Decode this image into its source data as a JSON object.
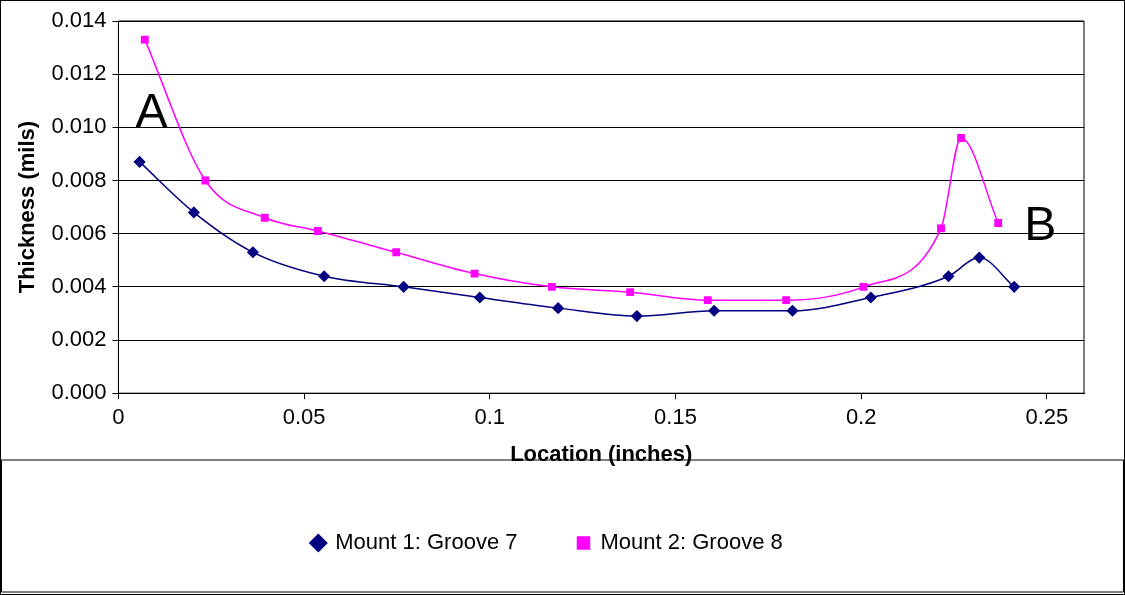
{
  "chart_data": {
    "type": "line",
    "xlabel": "Location (inches)",
    "ylabel": "Thickness (mils)",
    "xlim": [
      0,
      0.26
    ],
    "xticks": [
      0,
      0.05,
      0.1,
      0.15,
      0.2,
      0.25
    ],
    "ylim": [
      0,
      0.014
    ],
    "yticks": [
      {
        "value": 0,
        "label": "0.000"
      },
      {
        "value": 0.002,
        "label": "0.002"
      },
      {
        "value": 0.004,
        "label": "0.004"
      },
      {
        "value": 0.006,
        "label": "0.006"
      },
      {
        "value": 0.008,
        "label": "0.008"
      },
      {
        "value": 0.01,
        "label": "0.010"
      },
      {
        "value": 0.012,
        "label": "0.012"
      },
      {
        "value": 0.014,
        "label": "0.014"
      }
    ],
    "grid": "y",
    "legend": "bottom",
    "annotations": [
      "A",
      "B"
    ],
    "series": [
      {
        "name": "Mount 1: Groove 7",
        "color": "#000080",
        "marker": "diamond",
        "x": [
          0.0057,
          0.0203,
          0.0362,
          0.0554,
          0.0768,
          0.0973,
          0.1184,
          0.1396,
          0.1604,
          0.1815,
          0.2026,
          0.2235,
          0.2318,
          0.2412
        ],
        "values": [
          0.0087,
          0.0068,
          0.0053,
          0.0044,
          0.004,
          0.0036,
          0.0032,
          0.0029,
          0.0031,
          0.0031,
          0.0036,
          0.0044,
          0.0051,
          0.004
        ]
      },
      {
        "name": "Mount 2: Groove 8",
        "color": "#ff00ff",
        "marker": "square",
        "x": [
          0.0071,
          0.0234,
          0.0394,
          0.0537,
          0.0748,
          0.0959,
          0.1167,
          0.1378,
          0.1587,
          0.1798,
          0.2006,
          0.2215,
          0.2269,
          0.2369
        ],
        "values": [
          0.0133,
          0.008,
          0.0066,
          0.0061,
          0.0053,
          0.0045,
          0.004,
          0.0038,
          0.0035,
          0.0035,
          0.004,
          0.0062,
          0.0096,
          0.0064
        ]
      }
    ]
  }
}
